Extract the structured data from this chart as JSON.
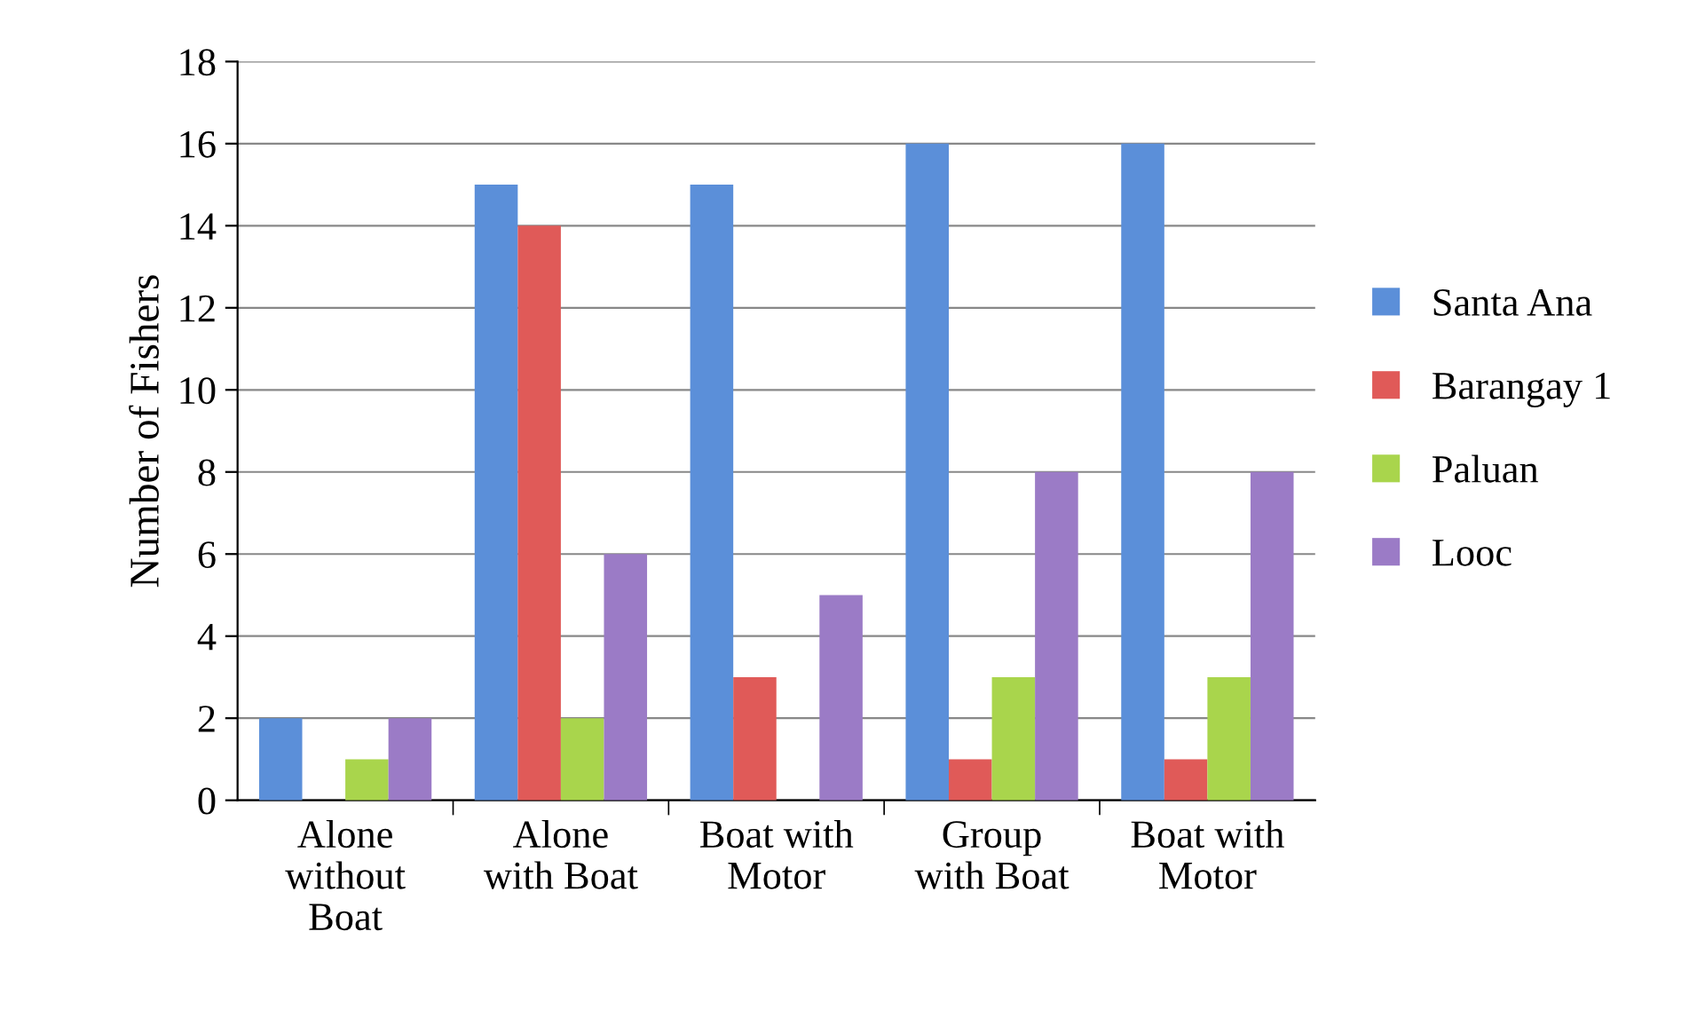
{
  "chart_data": {
    "type": "bar",
    "ylabel": "Number of Fishers",
    "categories": [
      "Alone\nwithout\nBoat",
      "Alone\nwith Boat",
      "Boat with\nMotor",
      "Group\nwith Boat",
      "Boat with\nMotor"
    ],
    "series": [
      {
        "name": "Santa Ana",
        "color": "#5b8fd9",
        "values": [
          2,
          15,
          15,
          16,
          16
        ]
      },
      {
        "name": "Barangay 1",
        "color": "#e05a58",
        "values": [
          0,
          14,
          3,
          1,
          1
        ]
      },
      {
        "name": "Paluan",
        "color": "#a9d54c",
        "values": [
          1,
          2,
          0,
          3,
          3
        ]
      },
      {
        "name": "Looc",
        "color": "#9b7bc6",
        "values": [
          2,
          6,
          5,
          8,
          8
        ]
      }
    ],
    "ylim": [
      0,
      18
    ],
    "yticks": [
      0,
      2,
      4,
      6,
      8,
      10,
      12,
      14,
      16,
      18
    ],
    "grid": "y",
    "legend": "right"
  }
}
